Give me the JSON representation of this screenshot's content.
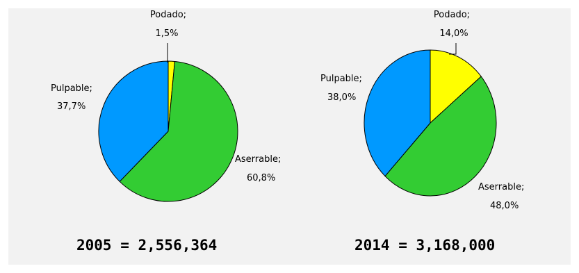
{
  "chart_data": [
    {
      "type": "pie",
      "title": "2005 = 2,556,364",
      "slices": [
        {
          "name": "Podado;",
          "value": 1.5,
          "label": "1,5%",
          "color": "#ffff00"
        },
        {
          "name": "Aserrable;",
          "value": 60.8,
          "label": "60,8%",
          "color": "#33cc33"
        },
        {
          "name": "Pulpable;",
          "value": 37.7,
          "label": "37,7%",
          "color": "#0099ff"
        }
      ]
    },
    {
      "type": "pie",
      "title": "2014 = 3,168,000",
      "slices": [
        {
          "name": "Podado;",
          "value": 14.0,
          "label": "14,0%",
          "color": "#ffff00"
        },
        {
          "name": "Aserrable;",
          "value": 48.0,
          "label": "48,0%",
          "color": "#33cc33"
        },
        {
          "name": "Pulpable;",
          "value": 38.0,
          "label": "38,0%",
          "color": "#0099ff"
        }
      ]
    }
  ]
}
